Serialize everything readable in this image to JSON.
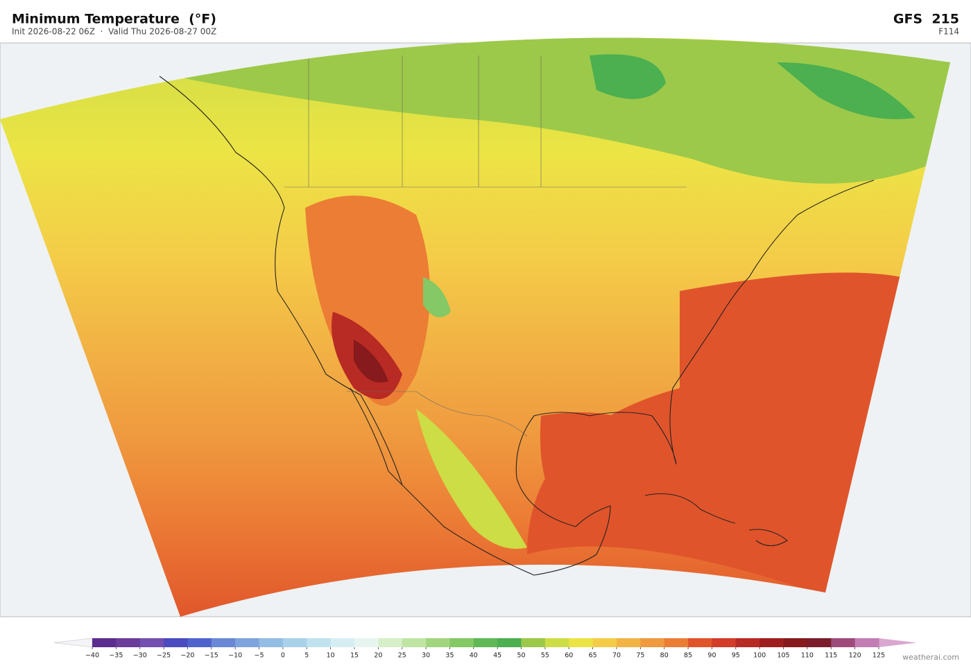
{
  "header": {
    "title": "Minimum Temperature  (°F)",
    "subtitle": "Init 2026-08-22 06Z  ·  Valid Thu 2026-08-27 00Z",
    "model": "GFS  215",
    "forecast_hour": "F114"
  },
  "colorbar": {
    "range": [
      -40,
      125
    ],
    "colors": [
      "#5b2d8e",
      "#6a3d9a",
      "#7350b0",
      "#4a4bbf",
      "#4f63cc",
      "#6a88d6",
      "#7fa3dc",
      "#94bde3",
      "#a9d1ea",
      "#c0e2ef",
      "#d6eef3",
      "#e6f5ef",
      "#d6efc9",
      "#bfe4a4",
      "#a2d67e",
      "#84c965",
      "#5fb957",
      "#4caf50",
      "#9cc94a",
      "#cddd45",
      "#ece445",
      "#f4cc48",
      "#f2b445",
      "#ef9a3f",
      "#ec7d35",
      "#e0542b",
      "#d23c28",
      "#b82a24",
      "#9e1e1f",
      "#861a1c",
      "#7a1c2a",
      "#9e4a7a",
      "#c27eb4"
    ],
    "under_color": "#f4f4f8",
    "over_color": "#d9a7d0",
    "ticks": [
      {
        "value": -40,
        "label": "−40"
      },
      {
        "value": -35,
        "label": "−35"
      },
      {
        "value": -30,
        "label": "−30"
      },
      {
        "value": -25,
        "label": "−25"
      },
      {
        "value": -20,
        "label": "−20"
      },
      {
        "value": -15,
        "label": "−15"
      },
      {
        "value": -10,
        "label": "−10"
      },
      {
        "value": -5,
        "label": "−5"
      },
      0,
      5,
      10,
      15,
      20,
      25,
      30,
      35,
      40,
      45,
      50,
      55,
      60,
      65,
      70,
      75,
      80,
      85,
      90,
      95,
      100,
      105,
      110,
      115,
      120,
      125
    ]
  },
  "footer": {
    "credit": "weatherai.com"
  }
}
